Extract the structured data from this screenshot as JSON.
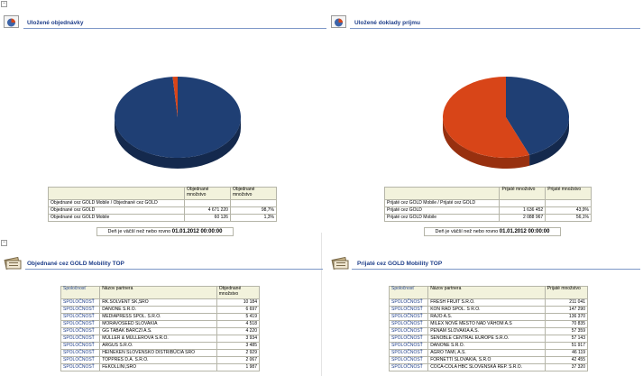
{
  "panels": {
    "orders": {
      "title": "Uložené objednávky",
      "columns": [
        "",
        "Objednané množstvo",
        "Objednané množstvo"
      ],
      "rows": [
        [
          "Objednané cez GOLD Mobile / Objednané cez GOLD",
          "",
          ""
        ],
        [
          "Objednané cez GOLD",
          "4 671 220",
          "98,7%"
        ],
        [
          "Objednané cez GOLD Mobile",
          "60 126",
          "1,3%"
        ]
      ],
      "filter_text": "Deň je väčší než nebo rovno",
      "filter_value": "01.01.2012 00:00:00",
      "chart_data": {
        "type": "pie",
        "title": "",
        "labels": [
          "Objednané cez GOLD",
          "Objednané cez GOLD Mobile"
        ],
        "values": [
          4671220,
          60126
        ],
        "percent": [
          98.7,
          1.3
        ],
        "colors": [
          "#1f3f74",
          "#d84518"
        ]
      }
    },
    "receipts": {
      "title": "Uložené doklady príjmu",
      "columns": [
        "",
        "Prijaté množstvo",
        "Prijaté množstvo"
      ],
      "rows": [
        [
          "Prijaté cez GOLD Mobile / Prijaté cez GOLD",
          "",
          ""
        ],
        [
          "Prijaté cez GOLD",
          "1 636 452",
          "43,9%"
        ],
        [
          "Prijaté cez GOLD Mobile",
          "2 088 967",
          "56,1%"
        ]
      ],
      "filter_text": "Deň je väčší než nebo rovno",
      "filter_value": "01.01.2012 00:00:00",
      "chart_data": {
        "type": "pie",
        "title": "",
        "labels": [
          "Prijaté cez GOLD",
          "Prijaté cez GOLD Mobile"
        ],
        "values": [
          1636452,
          2088967
        ],
        "percent": [
          43.9,
          56.1
        ],
        "colors": [
          "#1f3f74",
          "#d84518"
        ]
      }
    },
    "ordered_top": {
      "title": "Objednané cez GOLD Mobility TOP",
      "columns": [
        "Spoločnosť",
        "Názov partnera",
        "Objednané množstvo"
      ],
      "rows": [
        [
          "SPOLOČNOSŤ",
          "RK.SOLVENT SK,SRO",
          "10 184"
        ],
        [
          "SPOLOČNOSŤ",
          "DANONE S.R.O.",
          "6 697"
        ],
        [
          "SPOLOČNOSŤ",
          "MEDIAPRESS SPOL. S.R.O.",
          "5 419"
        ],
        [
          "SPOLOČNOSŤ",
          "MORAVOSEED SLOVAKIA",
          "4 518"
        ],
        [
          "SPOLOČNOSŤ",
          "GG TABAK BARCZI A.S.",
          "4 220"
        ],
        [
          "SPOLOČNOSŤ",
          "MÜLLER & MÜLLEROVÁ S.R.O.",
          "3 934"
        ],
        [
          "SPOLOČNOSŤ",
          "ARGUS S.R.O.",
          "3 485"
        ],
        [
          "SPOLOČNOSŤ",
          "HEINEKEN SLOVENSKO DISTRIBÚCIA SRO",
          "2 929"
        ],
        [
          "SPOLOČNOSŤ",
          "TOPPRES D.A. S.R.O.",
          "2 067"
        ],
        [
          "SPOLOČNOSŤ",
          "FEKOLLINI,SRO",
          "1 987"
        ]
      ]
    },
    "received_top": {
      "title": "Prijaté cez GOLD Mobility TOP",
      "columns": [
        "Spoločnosť",
        "Názov partnera",
        "Prijaté množstvo"
      ],
      "rows": [
        [
          "SPOLOČNOSŤ",
          "FRESH FRUIT S.R.O.",
          "211 041"
        ],
        [
          "SPOLOČNOSŤ",
          "KON RAD SPOL. S R.O.",
          "147 290"
        ],
        [
          "SPOLOČNOSŤ",
          "RAJO A.S.",
          "136 370"
        ],
        [
          "SPOLOČNOSŤ",
          "MILEX NOVÉ MESTO NAD VÁHOM A.S",
          "70 835"
        ],
        [
          "SPOLOČNOSŤ",
          "PENAM SLOVAKIA A.S.",
          "57 359"
        ],
        [
          "SPOLOČNOSŤ",
          "SENOBLE CENTRAL EUROPE S.R.O.",
          "57 143"
        ],
        [
          "SPOLOČNOSŤ",
          "DANONE S.R.O.",
          "51 917"
        ],
        [
          "SPOLOČNOSŤ",
          "AGRO TAMI, A.S.",
          "46 119"
        ],
        [
          "SPOLOČNOSŤ",
          "FORNETTI SLOVAKIA, S.R.O",
          "42 455"
        ],
        [
          "SPOLOČNOSŤ",
          "COCA-COLA HBC SLOVENSKÁ REP. S.R.O.",
          "37 320"
        ]
      ]
    }
  },
  "icons": [
    "pie-chart-icon",
    "table-report-icon",
    "collapse-icon"
  ]
}
